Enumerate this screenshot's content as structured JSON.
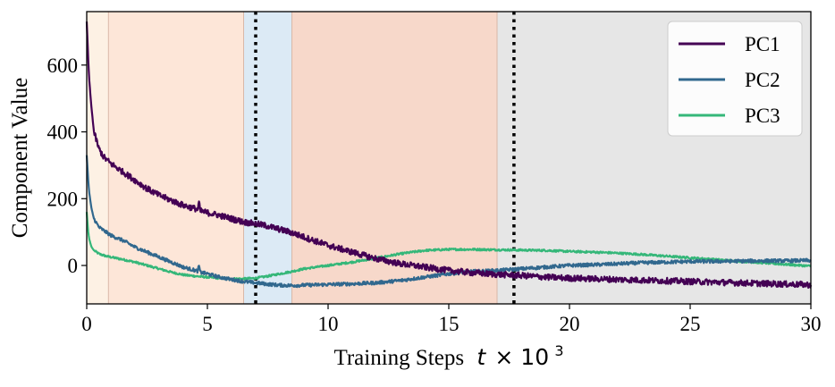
{
  "chart_data": {
    "type": "line",
    "title": "",
    "xlabel": "Training Steps",
    "xlabel_math": "t × 10",
    "xlabel_exponent": "3",
    "ylabel": "Component Value",
    "xlim": [
      0,
      30
    ],
    "ylim": [
      -115,
      760
    ],
    "x_ticks": [
      0,
      5,
      10,
      15,
      20,
      25,
      30
    ],
    "x_tick_labels": [
      "0",
      "5",
      "10",
      "15",
      "20",
      "25",
      "30"
    ],
    "y_ticks": [
      0,
      200,
      400,
      600
    ],
    "y_tick_labels": [
      "0",
      "200",
      "400",
      "600"
    ],
    "grid": false,
    "legend_position": "top-right",
    "shaded_regions": [
      {
        "x": [
          0,
          0.9
        ],
        "color": "#fdf1e4"
      },
      {
        "x": [
          0.9,
          6.5
        ],
        "color": "#fde6d8"
      },
      {
        "x": [
          6.5,
          8.5
        ],
        "color": "#dceaf5"
      },
      {
        "x": [
          8.5,
          17.0
        ],
        "color": "#f7d8ca"
      },
      {
        "x": [
          17.0,
          30
        ],
        "color": "#e6e6e6"
      }
    ],
    "vertical_dotted_lines": [
      7.0,
      17.7
    ],
    "series": [
      {
        "name": "PC1",
        "color": "#440154",
        "points": [
          [
            0,
            730
          ],
          [
            0.05,
            640
          ],
          [
            0.1,
            560
          ],
          [
            0.2,
            470
          ],
          [
            0.3,
            400
          ],
          [
            0.5,
            350
          ],
          [
            0.7,
            325
          ],
          [
            1,
            305
          ],
          [
            1.5,
            280
          ],
          [
            2,
            255
          ],
          [
            2.5,
            230
          ],
          [
            3,
            210
          ],
          [
            3.5,
            195
          ],
          [
            4,
            180
          ],
          [
            4.5,
            170
          ],
          [
            4.6,
            167
          ],
          [
            4.65,
            190
          ],
          [
            4.7,
            163
          ],
          [
            5,
            158
          ],
          [
            5.5,
            150
          ],
          [
            6,
            140
          ],
          [
            6.5,
            130
          ],
          [
            7,
            125
          ],
          [
            7.5,
            118
          ],
          [
            8,
            108
          ],
          [
            8.5,
            98
          ],
          [
            9,
            85
          ],
          [
            10,
            60
          ],
          [
            11,
            40
          ],
          [
            12,
            20
          ],
          [
            13,
            5
          ],
          [
            14,
            -5
          ],
          [
            15,
            -15
          ],
          [
            16,
            -22
          ],
          [
            17,
            -27
          ],
          [
            18,
            -30
          ],
          [
            19,
            -35
          ],
          [
            20,
            -38
          ],
          [
            21,
            -40
          ],
          [
            22,
            -42
          ],
          [
            23,
            -44
          ],
          [
            24,
            -46
          ],
          [
            25,
            -48
          ],
          [
            26,
            -50
          ],
          [
            27,
            -52
          ],
          [
            28,
            -54
          ],
          [
            29,
            -56
          ],
          [
            30,
            -58
          ]
        ]
      },
      {
        "name": "PC2",
        "color": "#31688e",
        "points": [
          [
            0,
            330
          ],
          [
            0.05,
            270
          ],
          [
            0.1,
            220
          ],
          [
            0.2,
            170
          ],
          [
            0.3,
            140
          ],
          [
            0.5,
            115
          ],
          [
            0.8,
            100
          ],
          [
            1,
            90
          ],
          [
            1.5,
            75
          ],
          [
            2,
            55
          ],
          [
            2.5,
            40
          ],
          [
            3,
            25
          ],
          [
            3.5,
            10
          ],
          [
            4,
            -5
          ],
          [
            4.5,
            -15
          ],
          [
            4.6,
            -17
          ],
          [
            4.65,
            0
          ],
          [
            4.7,
            -20
          ],
          [
            5,
            -25
          ],
          [
            5.5,
            -35
          ],
          [
            6,
            -42
          ],
          [
            6.5,
            -48
          ],
          [
            7,
            -52
          ],
          [
            7.5,
            -56
          ],
          [
            8,
            -59
          ],
          [
            8.5,
            -60
          ],
          [
            9,
            -59
          ],
          [
            10,
            -57
          ],
          [
            11,
            -55
          ],
          [
            12,
            -52
          ],
          [
            13,
            -45
          ],
          [
            14,
            -35
          ],
          [
            15,
            -25
          ],
          [
            16,
            -18
          ],
          [
            17,
            -15
          ],
          [
            18,
            -10
          ],
          [
            19,
            -5
          ],
          [
            20,
            0
          ],
          [
            21,
            2
          ],
          [
            22,
            5
          ],
          [
            23,
            8
          ],
          [
            24,
            10
          ],
          [
            25,
            12
          ],
          [
            26,
            12
          ],
          [
            27,
            13
          ],
          [
            28,
            14
          ],
          [
            29,
            14
          ],
          [
            30,
            15
          ]
        ]
      },
      {
        "name": "PC3",
        "color": "#35b779",
        "points": [
          [
            0,
            160
          ],
          [
            0.05,
            110
          ],
          [
            0.1,
            80
          ],
          [
            0.2,
            55
          ],
          [
            0.3,
            45
          ],
          [
            0.5,
            35
          ],
          [
            0.8,
            28
          ],
          [
            1,
            25
          ],
          [
            1.5,
            18
          ],
          [
            2,
            10
          ],
          [
            2.5,
            0
          ],
          [
            3,
            -10
          ],
          [
            3.5,
            -20
          ],
          [
            4,
            -28
          ],
          [
            4.5,
            -32
          ],
          [
            5,
            -35
          ],
          [
            5.5,
            -38
          ],
          [
            6,
            -40
          ],
          [
            6.5,
            -40
          ],
          [
            7,
            -38
          ],
          [
            7.5,
            -32
          ],
          [
            8,
            -25
          ],
          [
            8.5,
            -18
          ],
          [
            9,
            -10
          ],
          [
            10,
            0
          ],
          [
            11,
            10
          ],
          [
            12,
            22
          ],
          [
            13,
            35
          ],
          [
            14,
            45
          ],
          [
            15,
            48
          ],
          [
            16,
            48
          ],
          [
            17,
            47
          ],
          [
            18,
            46
          ],
          [
            19,
            45
          ],
          [
            20,
            42
          ],
          [
            21,
            40
          ],
          [
            22,
            37
          ],
          [
            23,
            33
          ],
          [
            24,
            28
          ],
          [
            25,
            23
          ],
          [
            26,
            18
          ],
          [
            27,
            13
          ],
          [
            28,
            8
          ],
          [
            29,
            3
          ],
          [
            30,
            -2
          ]
        ]
      }
    ]
  }
}
